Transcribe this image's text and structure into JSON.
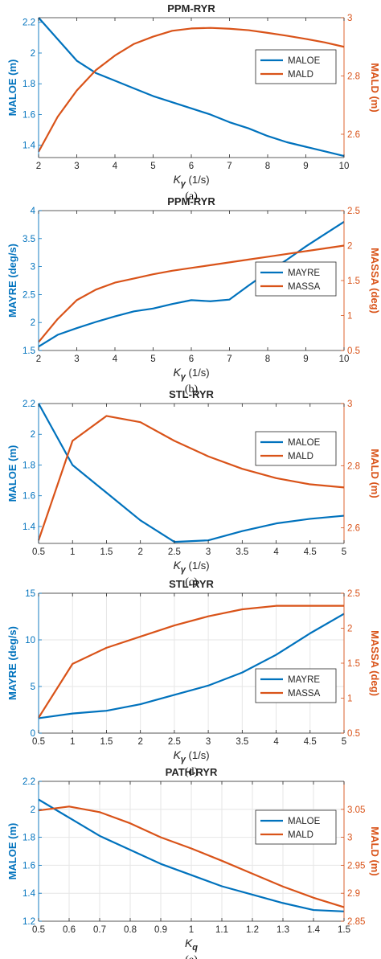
{
  "colors": {
    "left": "#0072BD",
    "right": "#D95319",
    "axis": "#262626",
    "grid": "#e6e6e6"
  },
  "chart_data": [
    {
      "type": "line",
      "title": "PPM-RYR",
      "xlabel": "Kγ (1/s)",
      "ylabel_left": "MALOE (m)",
      "ylabel_right": "MALD (m)",
      "caption": "(a)",
      "xlim": [
        2,
        10
      ],
      "ylim_left": [
        1.32,
        2.23
      ],
      "ylim_right": [
        2.52,
        3.0
      ],
      "xticks": [
        2,
        3,
        4,
        5,
        6,
        7,
        8,
        9,
        10
      ],
      "yticks_left": [
        1.4,
        1.6,
        1.8,
        2.0,
        2.2
      ],
      "yticks_left_labels": [
        "1.4",
        "1.6",
        "1.8",
        "2",
        "2.2"
      ],
      "yticks_right": [
        2.6,
        2.8,
        3.0
      ],
      "yticks_right_labels": [
        "2.6",
        "2.8",
        "3"
      ],
      "grid": false,
      "legend": "upper-right",
      "series": [
        {
          "name": "MALOE",
          "axis": "left",
          "x": [
            2,
            2.5,
            3,
            3.5,
            4,
            4.5,
            5,
            5.5,
            6,
            6.5,
            7,
            7.5,
            8,
            8.5,
            9,
            9.5,
            10
          ],
          "y": [
            2.23,
            2.09,
            1.95,
            1.87,
            1.82,
            1.77,
            1.72,
            1.68,
            1.64,
            1.6,
            1.55,
            1.51,
            1.46,
            1.42,
            1.39,
            1.36,
            1.33
          ]
        },
        {
          "name": "MALD",
          "axis": "right",
          "x": [
            2,
            2.5,
            3,
            3.5,
            4,
            4.5,
            5,
            5.5,
            6,
            6.5,
            7,
            7.5,
            8,
            8.5,
            9,
            9.5,
            10
          ],
          "y": [
            2.54,
            2.66,
            2.75,
            2.82,
            2.87,
            2.91,
            2.935,
            2.955,
            2.963,
            2.965,
            2.962,
            2.957,
            2.948,
            2.938,
            2.927,
            2.915,
            2.9
          ]
        }
      ]
    },
    {
      "type": "line",
      "title": "PPM-RYR",
      "xlabel": "Kγ (1/s)",
      "ylabel_left": "MAYRE (deg/s)",
      "ylabel_right": "MASSA (deg)",
      "caption": "(b)",
      "xlim": [
        2,
        10
      ],
      "ylim_left": [
        1.5,
        4.0
      ],
      "ylim_right": [
        0.5,
        2.5
      ],
      "xticks": [
        2,
        3,
        4,
        5,
        6,
        7,
        8,
        9,
        10
      ],
      "yticks_left": [
        1.5,
        2,
        2.5,
        3,
        3.5,
        4
      ],
      "yticks_left_labels": [
        "1.5",
        "2",
        "2.5",
        "3",
        "3.5",
        "4"
      ],
      "yticks_right": [
        0.5,
        1,
        1.5,
        2,
        2.5
      ],
      "yticks_right_labels": [
        "0.5",
        "1",
        "1.5",
        "2",
        "2.5"
      ],
      "grid": false,
      "legend": "lower-right",
      "series": [
        {
          "name": "MAYRE",
          "axis": "left",
          "x": [
            2,
            2.5,
            3,
            3.5,
            4,
            4.5,
            5,
            5.5,
            6,
            6.5,
            7,
            7.5,
            8,
            8.5,
            9,
            9.5,
            10
          ],
          "y": [
            1.57,
            1.78,
            1.9,
            2.01,
            2.11,
            2.2,
            2.25,
            2.33,
            2.4,
            2.38,
            2.41,
            2.66,
            2.9,
            3.12,
            3.36,
            3.58,
            3.8
          ]
        },
        {
          "name": "MASSA",
          "axis": "right",
          "x": [
            2,
            2.5,
            3,
            3.5,
            4,
            4.5,
            5,
            5.5,
            6,
            6.5,
            7,
            7.5,
            8,
            8.5,
            9,
            9.5,
            10
          ],
          "y": [
            0.62,
            0.95,
            1.22,
            1.37,
            1.47,
            1.53,
            1.59,
            1.64,
            1.68,
            1.72,
            1.76,
            1.8,
            1.84,
            1.88,
            1.92,
            1.96,
            2.0
          ]
        }
      ]
    },
    {
      "type": "line",
      "title": "STL-RYR",
      "xlabel": "Kγ (1/s)",
      "ylabel_left": "MALOE (m)",
      "ylabel_right": "MALD (m)",
      "caption": "(c)",
      "xlim": [
        0.5,
        5
      ],
      "ylim_left": [
        1.29,
        2.2
      ],
      "ylim_right": [
        2.55,
        3.0
      ],
      "xticks": [
        0.5,
        1,
        1.5,
        2,
        2.5,
        3,
        3.5,
        4,
        4.5,
        5
      ],
      "yticks_left": [
        1.4,
        1.6,
        1.8,
        2.0,
        2.2
      ],
      "yticks_left_labels": [
        "1.4",
        "1.6",
        "1.8",
        "2",
        "2.2"
      ],
      "yticks_right": [
        2.6,
        2.8,
        3.0
      ],
      "yticks_right_labels": [
        "2.6",
        "2.8",
        "3"
      ],
      "grid": false,
      "legend": "upper-right",
      "series": [
        {
          "name": "MALOE",
          "axis": "left",
          "x": [
            0.5,
            1,
            1.5,
            2,
            2.5,
            3,
            3.5,
            4,
            4.5,
            5
          ],
          "y": [
            2.2,
            1.8,
            1.62,
            1.44,
            1.3,
            1.31,
            1.37,
            1.42,
            1.45,
            1.47
          ]
        },
        {
          "name": "MALD",
          "axis": "right",
          "x": [
            0.5,
            1,
            1.5,
            2,
            2.5,
            3,
            3.5,
            4,
            4.5,
            5
          ],
          "y": [
            2.56,
            2.88,
            2.96,
            2.94,
            2.88,
            2.83,
            2.79,
            2.76,
            2.74,
            2.73
          ]
        }
      ]
    },
    {
      "type": "line",
      "title": "STL-RYR",
      "xlabel": "Kγ (1/s)",
      "ylabel_left": "MAYRE (deg/s)",
      "ylabel_right": "MASSA (deg)",
      "caption": "(d)",
      "xlim": [
        0.5,
        5
      ],
      "ylim_left": [
        0,
        15
      ],
      "ylim_right": [
        0.5,
        2.5
      ],
      "xticks": [
        0.5,
        1,
        1.5,
        2,
        2.5,
        3,
        3.5,
        4,
        4.5,
        5
      ],
      "yticks_left": [
        0,
        5,
        10,
        15
      ],
      "yticks_left_labels": [
        "0",
        "5",
        "10",
        "15"
      ],
      "yticks_right": [
        0.5,
        1,
        1.5,
        2,
        2.5
      ],
      "yticks_right_labels": [
        "0.5",
        "1",
        "1.5",
        "2",
        "2.5"
      ],
      "grid": true,
      "legend": "lower-right",
      "series": [
        {
          "name": "MAYRE",
          "axis": "left",
          "x": [
            0.5,
            1,
            1.5,
            2,
            2.5,
            3,
            3.5,
            4,
            4.5,
            5
          ],
          "y": [
            1.6,
            2.1,
            2.4,
            3.1,
            4.1,
            5.1,
            6.5,
            8.4,
            10.7,
            12.8
          ]
        },
        {
          "name": "MASSA",
          "axis": "right",
          "x": [
            0.5,
            1,
            1.5,
            2,
            2.5,
            3,
            3.5,
            4,
            4.5,
            5
          ],
          "y": [
            0.72,
            1.49,
            1.72,
            1.88,
            2.04,
            2.17,
            2.27,
            2.32,
            2.32,
            2.32
          ]
        }
      ]
    },
    {
      "type": "line",
      "title": "PATH-RYR",
      "xlabel": "Kq",
      "ylabel_left": "MALOE (m)",
      "ylabel_right": "MALD (m)",
      "caption": "(e)",
      "xlim": [
        0.5,
        1.5
      ],
      "ylim_left": [
        1.2,
        2.2
      ],
      "ylim_right": [
        2.85,
        3.1
      ],
      "xticks": [
        0.5,
        0.6,
        0.7,
        0.8,
        0.9,
        1.0,
        1.1,
        1.2,
        1.3,
        1.4,
        1.5
      ],
      "xticks_labels": [
        "0.5",
        "0.6",
        "0.7",
        "0.8",
        "0.9",
        "1",
        "1.1",
        "1.2",
        "1.3",
        "1.4",
        "1.5"
      ],
      "yticks_left": [
        1.2,
        1.4,
        1.6,
        1.8,
        2.0,
        2.2
      ],
      "yticks_left_labels": [
        "1.2",
        "1.4",
        "1.6",
        "1.8",
        "2",
        "2.2"
      ],
      "yticks_right": [
        2.85,
        2.9,
        2.95,
        3.0,
        3.05
      ],
      "yticks_right_labels": [
        "2.85",
        "2.9",
        "2.95",
        "3",
        "3.05"
      ],
      "grid": true,
      "legend": "upper-right",
      "series": [
        {
          "name": "MALOE",
          "axis": "left",
          "x": [
            0.5,
            0.6,
            0.7,
            0.8,
            0.9,
            1.0,
            1.1,
            1.2,
            1.3,
            1.4,
            1.5
          ],
          "y": [
            2.07,
            1.94,
            1.81,
            1.71,
            1.61,
            1.53,
            1.45,
            1.39,
            1.33,
            1.28,
            1.27
          ]
        },
        {
          "name": "MALD",
          "axis": "right",
          "x": [
            0.5,
            0.6,
            0.7,
            0.8,
            0.9,
            1.0,
            1.1,
            1.2,
            1.3,
            1.4,
            1.5
          ],
          "y": [
            3.048,
            3.055,
            3.045,
            3.025,
            3.0,
            2.98,
            2.958,
            2.935,
            2.912,
            2.892,
            2.875
          ]
        }
      ]
    }
  ]
}
